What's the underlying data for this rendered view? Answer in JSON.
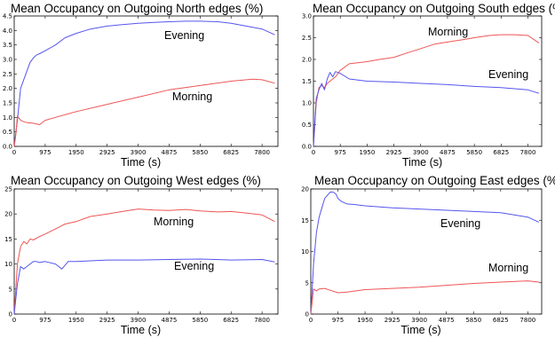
{
  "chart_data": [
    {
      "type": "line",
      "title": "Mean Occupancy on Outgoing North edges (%)",
      "xlabel": "Time (s)",
      "ylabel": "",
      "xlim": [
        0,
        8300
      ],
      "ylim": [
        0,
        4.5
      ],
      "xticks": [
        "0",
        "975",
        "1950",
        "2925",
        "3900",
        "4875",
        "5850",
        "6825",
        "7800"
      ],
      "yticks": [
        "0.0",
        "0.5",
        "1.0",
        "1.5",
        "2.0",
        "2.5",
        "3.0",
        "3.5",
        "4.0",
        "4.5"
      ],
      "series": [
        {
          "name": "Evening",
          "color": "#5555ee",
          "x": [
            0,
            100,
            200,
            300,
            400,
            500,
            600,
            700,
            800,
            975,
            1300,
            1600,
            1950,
            2400,
            2925,
            3400,
            3900,
            4400,
            4875,
            5400,
            5850,
            6400,
            6825,
            7300,
            7800,
            8200
          ],
          "y": [
            0,
            0.9,
            2.0,
            2.3,
            2.6,
            2.9,
            3.05,
            3.15,
            3.2,
            3.3,
            3.5,
            3.75,
            3.9,
            4.05,
            4.15,
            4.2,
            4.25,
            4.28,
            4.3,
            4.32,
            4.32,
            4.3,
            4.25,
            4.15,
            4.05,
            3.85
          ]
        },
        {
          "name": "Morning",
          "color": "#ee5555",
          "x": [
            0,
            50,
            100,
            200,
            300,
            400,
            600,
            800,
            975,
            1300,
            1950,
            2925,
            3900,
            4875,
            5850,
            6825,
            7500,
            7800,
            8200
          ],
          "y": [
            0,
            0.4,
            1.05,
            0.9,
            0.85,
            0.82,
            0.8,
            0.75,
            0.9,
            1.0,
            1.2,
            1.45,
            1.7,
            1.95,
            2.1,
            2.25,
            2.32,
            2.3,
            2.18
          ]
        }
      ]
    },
    {
      "type": "line",
      "title": "Mean Occupancy on Outgoing South edges (%)",
      "xlabel": "Time (s)",
      "ylabel": "",
      "xlim": [
        0,
        8300
      ],
      "ylim": [
        0,
        3.0
      ],
      "xticks": [
        "0",
        "975",
        "1950",
        "2925",
        "3900",
        "4875",
        "5850",
        "6825",
        "7800"
      ],
      "yticks": [
        "0.0",
        "0.5",
        "1.0",
        "1.5",
        "2.0",
        "2.5",
        "3.0"
      ],
      "series": [
        {
          "name": "Morning",
          "color": "#ee5555",
          "x": [
            0,
            100,
            200,
            300,
            400,
            500,
            600,
            700,
            800,
            975,
            1300,
            1950,
            2400,
            2925,
            3400,
            3900,
            4400,
            4875,
            5400,
            5850,
            6400,
            6825,
            7300,
            7800,
            8200
          ],
          "y": [
            0,
            1.0,
            1.35,
            1.4,
            1.35,
            1.45,
            1.5,
            1.55,
            1.6,
            1.75,
            1.9,
            1.95,
            2.0,
            2.05,
            2.15,
            2.25,
            2.35,
            2.4,
            2.45,
            2.5,
            2.55,
            2.57,
            2.57,
            2.55,
            2.38
          ]
        },
        {
          "name": "Evening",
          "color": "#5555ee",
          "x": [
            0,
            100,
            200,
            300,
            400,
            500,
            600,
            700,
            800,
            975,
            1300,
            1950,
            2925,
            3900,
            4875,
            5850,
            6825,
            7800,
            8200
          ],
          "y": [
            0,
            1.1,
            1.3,
            1.45,
            1.3,
            1.55,
            1.7,
            1.6,
            1.72,
            1.68,
            1.55,
            1.5,
            1.48,
            1.45,
            1.42,
            1.38,
            1.35,
            1.3,
            1.22
          ]
        }
      ]
    },
    {
      "type": "line",
      "title": "Mean Occupancy on Outgoing West edges (%)",
      "xlabel": "Time (s)",
      "ylabel": "",
      "xlim": [
        0,
        8300
      ],
      "ylim": [
        0,
        25
      ],
      "xticks": [
        "0",
        "975",
        "1950",
        "2925",
        "3900",
        "4875",
        "5850",
        "6825",
        "7800"
      ],
      "yticks": [
        "0",
        "5",
        "10",
        "15",
        "20",
        "25"
      ],
      "series": [
        {
          "name": "Morning",
          "color": "#ee5555",
          "x": [
            0,
            100,
            200,
            300,
            400,
            500,
            600,
            800,
            975,
            1300,
            1600,
            1950,
            2400,
            2925,
            3400,
            3900,
            4400,
            4875,
            5400,
            5850,
            6400,
            6825,
            7300,
            7800,
            8200
          ],
          "y": [
            0,
            10,
            13.5,
            14.5,
            14.0,
            15.0,
            14.8,
            15.5,
            16.0,
            17.0,
            18.0,
            18.5,
            19.5,
            20.0,
            20.5,
            21.0,
            20.8,
            20.7,
            20.9,
            20.6,
            20.4,
            20.5,
            20.2,
            19.8,
            18.5
          ]
        },
        {
          "name": "Evening",
          "color": "#5555ee",
          "x": [
            0,
            100,
            200,
            300,
            400,
            500,
            600,
            700,
            800,
            975,
            1300,
            1500,
            1700,
            1950,
            2925,
            3900,
            4875,
            5850,
            6825,
            7800,
            8200
          ],
          "y": [
            0,
            6,
            9.5,
            9.0,
            9.5,
            10.0,
            10.5,
            10.5,
            10.3,
            10.5,
            10.0,
            9.0,
            10.5,
            10.5,
            10.8,
            10.8,
            10.9,
            11.0,
            10.8,
            10.9,
            10.4
          ]
        }
      ]
    },
    {
      "type": "line",
      "title": "Mean Occupancy on Outgoing East edges (%)",
      "xlabel": "Time (s)",
      "ylabel": "",
      "xlim": [
        0,
        8300
      ],
      "ylim": [
        0,
        20
      ],
      "xticks": [
        "0",
        "975",
        "1950",
        "2925",
        "3900",
        "4875",
        "5850",
        "6825",
        "7800"
      ],
      "yticks": [
        "0",
        "5",
        "10",
        "15",
        "20"
      ],
      "series": [
        {
          "name": "Evening",
          "color": "#5555ee",
          "x": [
            0,
            100,
            200,
            300,
            400,
            500,
            600,
            700,
            800,
            900,
            975,
            1100,
            1300,
            1600,
            1950,
            2925,
            3900,
            4875,
            5850,
            6825,
            7800,
            8200
          ],
          "y": [
            0,
            8,
            13.0,
            15.5,
            17.0,
            18.5,
            19.0,
            19.5,
            19.5,
            19.2,
            18.5,
            18.0,
            17.6,
            17.5,
            17.3,
            17.0,
            16.8,
            16.6,
            16.4,
            16.2,
            15.5,
            14.7
          ]
        },
        {
          "name": "Morning",
          "color": "#ee5555",
          "x": [
            0,
            100,
            200,
            300,
            500,
            700,
            975,
            1300,
            1950,
            2925,
            3900,
            4875,
            5850,
            6825,
            7800,
            8200
          ],
          "y": [
            0,
            4.0,
            3.7,
            4.0,
            4.1,
            3.8,
            3.4,
            3.5,
            3.9,
            4.1,
            4.3,
            4.6,
            4.9,
            5.1,
            5.3,
            5.1
          ]
        }
      ]
    }
  ]
}
